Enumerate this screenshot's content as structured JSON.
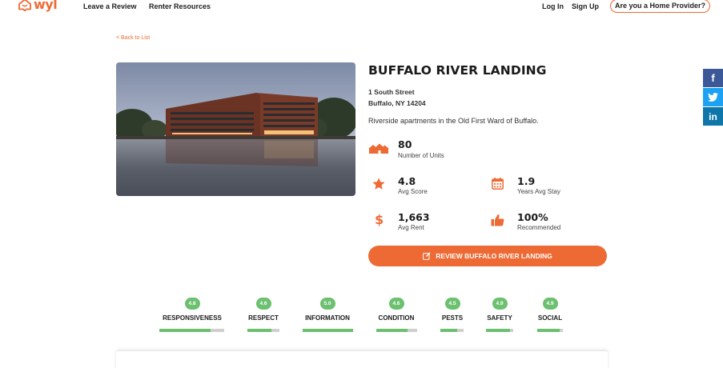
{
  "header": {
    "logo_text": "wyl",
    "nav": [
      "Leave a Review",
      "Renter Resources"
    ],
    "login": "Log In",
    "signup": "Sign Up",
    "provider_button": "Are you a Home Provider?"
  },
  "back_link": "< Back to List",
  "property": {
    "name": "BUFFALO RIVER LANDING",
    "address_line1": "1 South Street",
    "address_line2": "Buffalo, NY 14204",
    "description": "Riverside apartments in the Old First Ward of Buffalo."
  },
  "stats": {
    "units": {
      "value": "80",
      "label": "Number of Units",
      "icon": "houses-icon"
    },
    "score": {
      "value": "4.8",
      "label": "Avg Score",
      "icon": "star-icon"
    },
    "stay": {
      "value": "1.9",
      "label": "Years Avg Stay",
      "icon": "calendar-icon"
    },
    "rent": {
      "value": "1,663",
      "label": "Avg Rent",
      "icon": "dollar-icon"
    },
    "recommended": {
      "value": "100%",
      "label": "Recommended",
      "icon": "thumbs-up-icon"
    }
  },
  "review_button": "REVIEW BUFFALO RIVER LANDING",
  "ratings": [
    {
      "label": "RESPONSIVENESS",
      "score": "4.8",
      "fraction": 0.79
    },
    {
      "label": "RESPECT",
      "score": "4.6",
      "fraction": 0.76
    },
    {
      "label": "INFORMATION",
      "score": "5.0",
      "fraction": 1.0
    },
    {
      "label": "CONDITION",
      "score": "4.6",
      "fraction": 0.76
    },
    {
      "label": "PESTS",
      "score": "4.5",
      "fraction": 0.74
    },
    {
      "label": "SAFETY",
      "score": "4.9",
      "fraction": 0.88
    },
    {
      "label": "SOCIAL",
      "score": "4.9",
      "fraction": 0.88
    }
  ],
  "social": [
    "facebook-icon",
    "twitter-icon",
    "linkedin-icon"
  ],
  "colors": {
    "accent": "#ee6a34",
    "rating_green": "#6cc070",
    "bar_track": "#cfcfcf"
  }
}
